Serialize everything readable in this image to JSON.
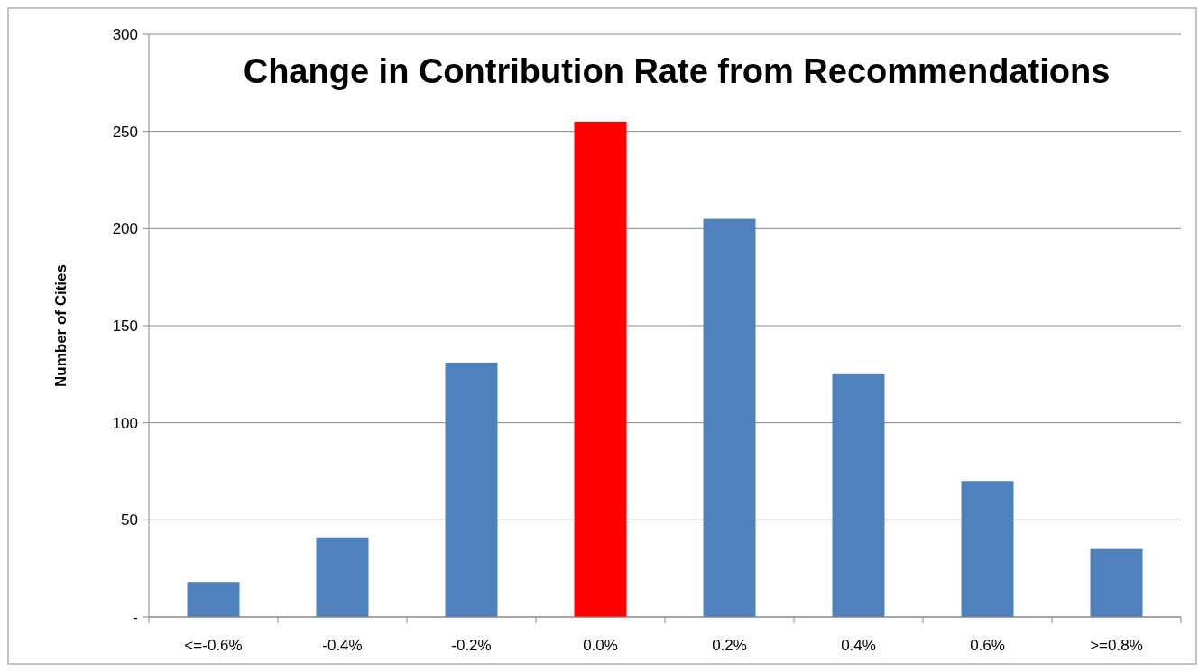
{
  "chart_data": {
    "type": "bar",
    "title": "Change in Contribution Rate from Recommendations",
    "ylabel": "Number of Cities",
    "categories": [
      "<=-0.6%",
      "-0.4%",
      "-0.2%",
      "0.0%",
      "0.2%",
      "0.4%",
      "0.6%",
      ">=0.8%"
    ],
    "values": [
      18,
      41,
      131,
      255,
      205,
      125,
      70,
      35
    ],
    "colors": [
      "#4f81bd",
      "#4f81bd",
      "#4f81bd",
      "#ff0000",
      "#4f81bd",
      "#4f81bd",
      "#4f81bd",
      "#4f81bd"
    ],
    "ylim": [
      0,
      300
    ],
    "yticks": [
      {
        "value": 0,
        "label": "-"
      },
      50,
      100,
      150,
      200,
      250,
      300
    ],
    "grid": "y"
  }
}
